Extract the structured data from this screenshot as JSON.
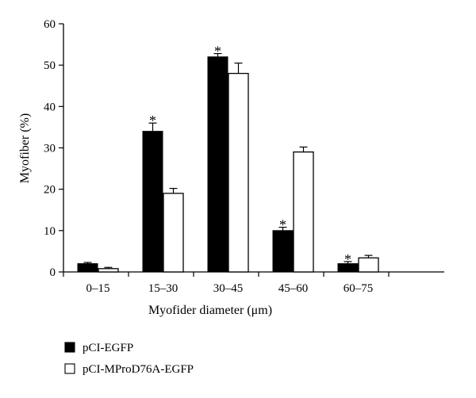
{
  "chart_data": {
    "type": "bar",
    "title": "",
    "xlabel": "Myofider diameter (μm)",
    "ylabel": "Myofiber (%)",
    "ylim": [
      0,
      60
    ],
    "yticks": [
      0,
      10,
      20,
      30,
      40,
      50,
      60
    ],
    "categories": [
      "0–15",
      "15–30",
      "30–45",
      "45–60",
      "60–75"
    ],
    "series": [
      {
        "name": "pCI-EGFP",
        "color": "#000000",
        "values": [
          2,
          34,
          52,
          10,
          2
        ],
        "errors": [
          0.3,
          2.0,
          0.8,
          0.8,
          0.5
        ],
        "significant": [
          false,
          true,
          true,
          true,
          true
        ]
      },
      {
        "name": "pCI-MProD76A-EGFP",
        "color": "#ffffff",
        "values": [
          0.8,
          19,
          48,
          29,
          3.4
        ],
        "errors": [
          0.3,
          1.2,
          2.5,
          1.2,
          0.6
        ],
        "significant": [
          false,
          false,
          false,
          false,
          false
        ]
      }
    ],
    "significance_marker": "*",
    "grid": false,
    "legend_position": "bottom-left"
  }
}
